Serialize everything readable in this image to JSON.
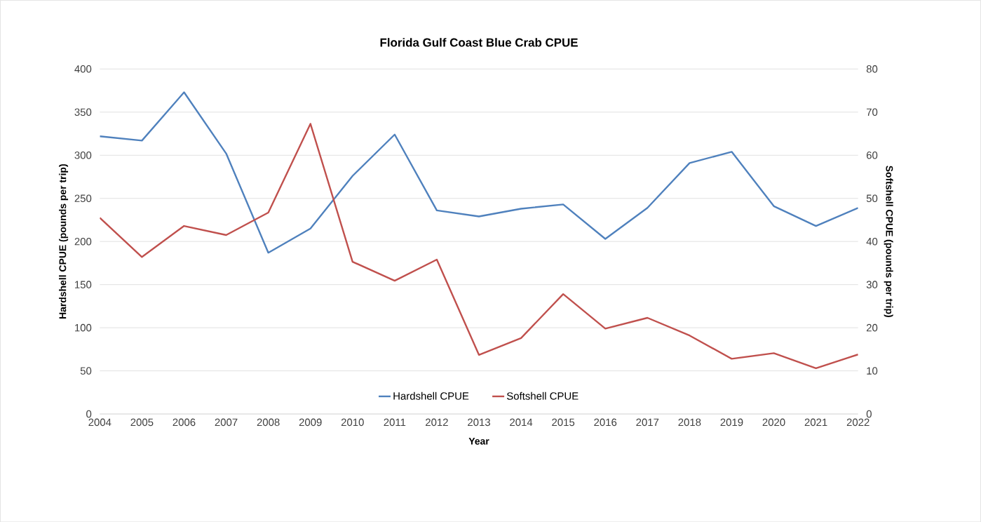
{
  "chart_data": {
    "type": "line",
    "title": "Florida Gulf Coast Blue Crab CPUE",
    "xlabel": "Year",
    "ylabel": "Hardshell CPUE (pounds per trip)",
    "y2label": "Softshell CPUE (pounds per trip)",
    "categories": [
      "2004",
      "2005",
      "2006",
      "2007",
      "2008",
      "2009",
      "2010",
      "2011",
      "2012",
      "2013",
      "2014",
      "2015",
      "2016",
      "2017",
      "2018",
      "2019",
      "2020",
      "2021",
      "2022"
    ],
    "series": [
      {
        "name": "Hardshell CPUE",
        "color": "#4f81bd",
        "values": [
          322,
          317,
          373,
          302,
          187,
          215,
          276,
          324,
          236,
          229,
          238,
          243,
          203,
          239,
          291,
          304,
          241,
          218,
          239
        ]
      },
      {
        "name": "Softshell CPUE",
        "color": "#c0504d",
        "axis": "y2",
        "values": [
          45.5,
          36.4,
          43.6,
          41.5,
          46.7,
          67.3,
          35.3,
          30.9,
          35.8,
          13.7,
          17.6,
          27.8,
          19.8,
          22.3,
          18.2,
          12.8,
          14.1,
          10.6,
          13.8
        ]
      }
    ],
    "ylim": [
      0,
      400
    ],
    "yticks": [
      0,
      50,
      100,
      150,
      200,
      250,
      300,
      350,
      400
    ],
    "y2lim": [
      0,
      80
    ],
    "y2ticks": [
      0,
      10,
      20,
      30,
      40,
      50,
      60,
      70,
      80
    ],
    "grid": "y",
    "legend": "bottom"
  }
}
